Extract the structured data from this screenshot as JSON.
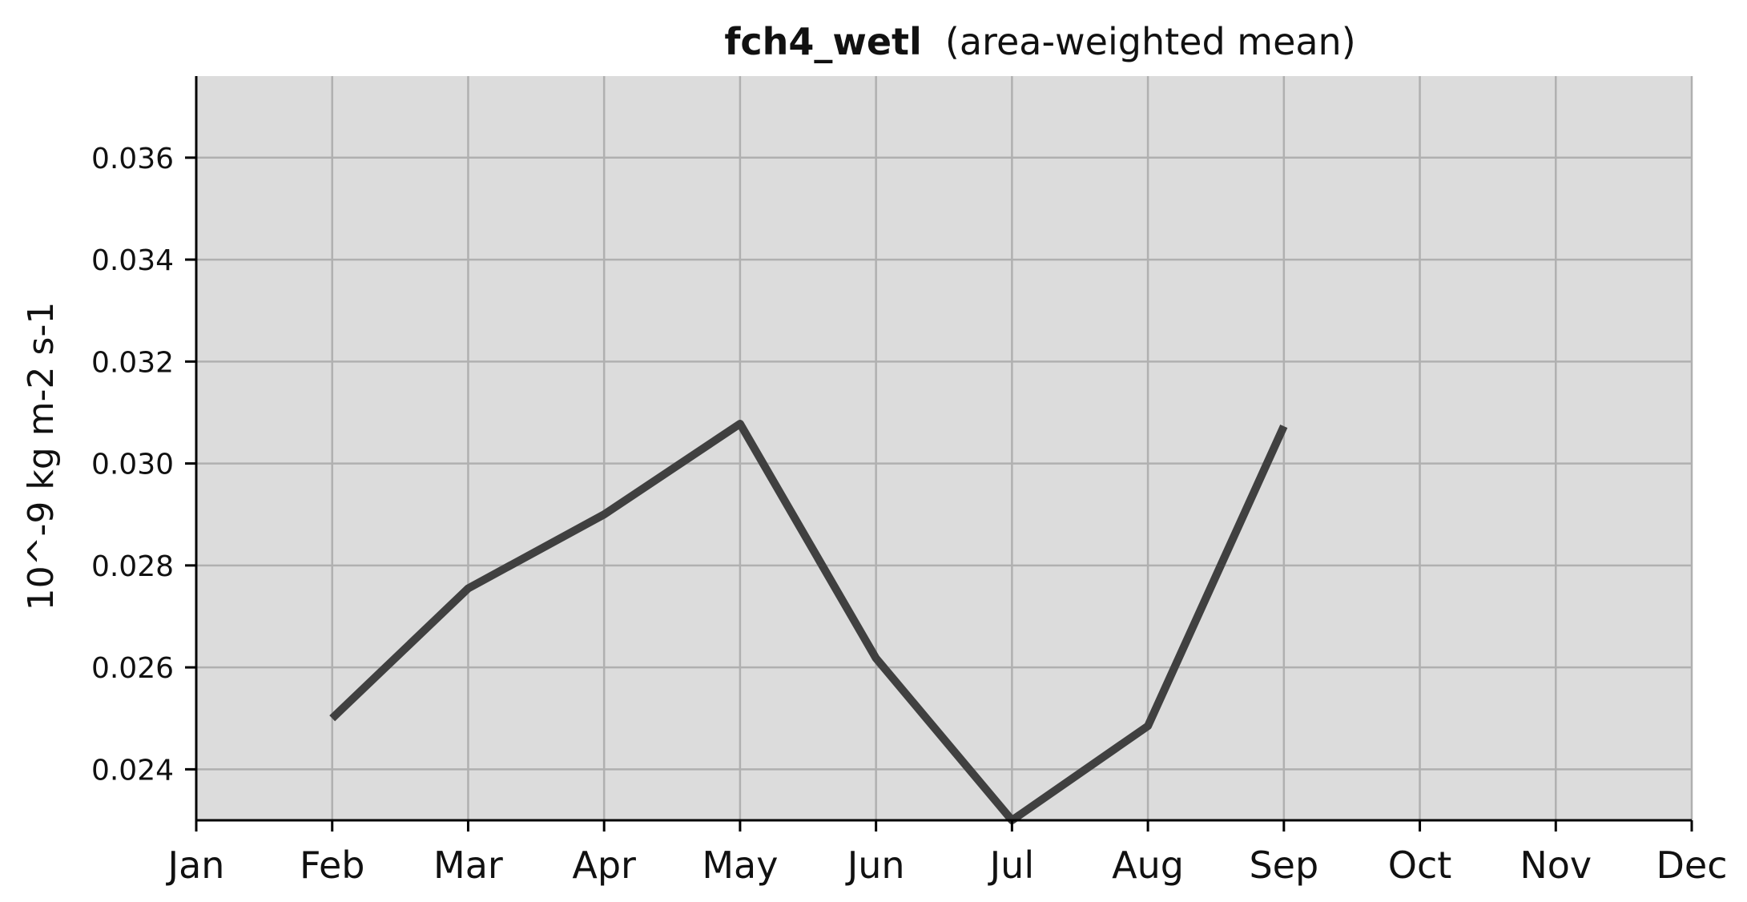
{
  "chart_data": {
    "type": "line",
    "title": "fch4_wetl",
    "subtitle": "(area-weighted mean)",
    "xlabel": "",
    "ylabel": "10^-9 kg m-2 s-1",
    "categories": [
      "Jan",
      "Feb",
      "Mar",
      "Apr",
      "May",
      "Jun",
      "Jul",
      "Aug",
      "Sep",
      "Oct",
      "Nov",
      "Dec"
    ],
    "series": [
      {
        "values": [
          null,
          0.025,
          0.02755,
          0.029,
          0.03078,
          0.02618,
          0.023,
          0.02485,
          0.03073,
          null,
          null,
          null
        ],
        "color": "#404040"
      }
    ],
    "ylim": [
      0.023,
      0.0376
    ],
    "yticks": [
      0.024,
      0.026,
      0.028,
      0.03,
      0.032,
      0.034,
      0.036
    ],
    "ytick_labels": [
      "0.024",
      "0.026",
      "0.028",
      "0.030",
      "0.032",
      "0.034",
      "0.036"
    ],
    "grid": true,
    "background_color": "#dcdcdc",
    "grid_color": "#b0b0b0"
  }
}
